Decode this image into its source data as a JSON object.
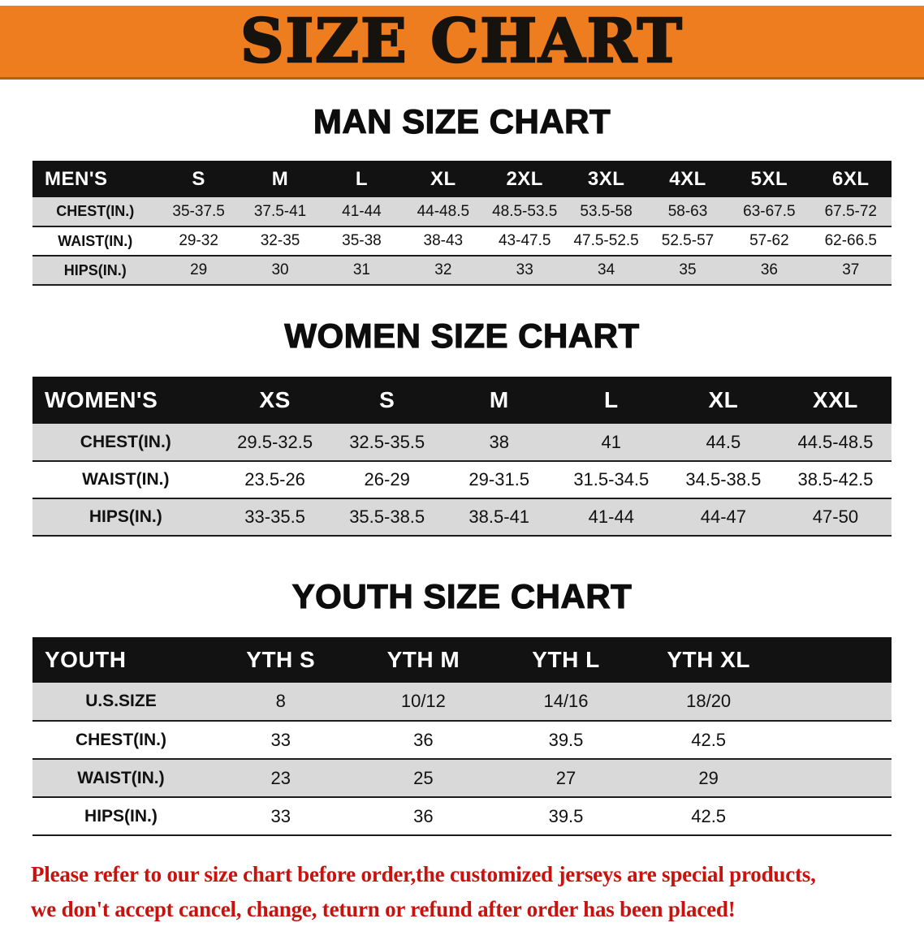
{
  "colors": {
    "banner_bg": "#EE7D1F",
    "table_header_bg": "#121212",
    "row_stripe": "#D9D9D9",
    "disclaimer_text": "#C9120E"
  },
  "banner": {
    "title": "SIZE CHART"
  },
  "sections": [
    {
      "id": "men",
      "heading": "MAN SIZE CHART",
      "table": {
        "header": [
          "MEN'S",
          "S",
          "M",
          "L",
          "XL",
          "2XL",
          "3XL",
          "4XL",
          "5XL",
          "6XL"
        ],
        "rows": [
          [
            "CHEST(IN.)",
            "35-37.5",
            "37.5-41",
            "41-44",
            "44-48.5",
            "48.5-53.5",
            "53.5-58",
            "58-63",
            "63-67.5",
            "67.5-72"
          ],
          [
            "WAIST(IN.)",
            "29-32",
            "32-35",
            "35-38",
            "38-43",
            "43-47.5",
            "47.5-52.5",
            "52.5-57",
            "57-62",
            "62-66.5"
          ],
          [
            "HIPS(IN.)",
            "29",
            "30",
            "31",
            "32",
            "33",
            "34",
            "35",
            "36",
            "37"
          ]
        ]
      }
    },
    {
      "id": "women",
      "heading": "WOMEN SIZE CHART",
      "table": {
        "header": [
          "WOMEN'S",
          "XS",
          "S",
          "M",
          "L",
          "XL",
          "XXL"
        ],
        "rows": [
          [
            "CHEST(IN.)",
            "29.5-32.5",
            "32.5-35.5",
            "38",
            "41",
            "44.5",
            "44.5-48.5"
          ],
          [
            "WAIST(IN.)",
            "23.5-26",
            "26-29",
            "29-31.5",
            "31.5-34.5",
            "34.5-38.5",
            "38.5-42.5"
          ],
          [
            "HIPS(IN.)",
            "33-35.5",
            "35.5-38.5",
            "38.5-41",
            "41-44",
            "44-47",
            "47-50"
          ]
        ]
      }
    },
    {
      "id": "youth",
      "heading": "YOUTH SIZE CHART",
      "table": {
        "header": [
          "YOUTH",
          "YTH S",
          "YTH M",
          "YTH L",
          "YTH XL"
        ],
        "rows": [
          [
            "U.S.SIZE",
            "8",
            "10/12",
            "14/16",
            "18/20"
          ],
          [
            "CHEST(IN.)",
            "33",
            "36",
            "39.5",
            "42.5"
          ],
          [
            "WAIST(IN.)",
            "23",
            "25",
            "27",
            "29"
          ],
          [
            "HIPS(IN.)",
            "33",
            "36",
            "39.5",
            "42.5"
          ]
        ]
      }
    }
  ],
  "disclaimer": {
    "line1": "Please refer to our size chart before order,the customized jerseys are special products,",
    "line2": "we don't accept cancel, change, teturn or refund after order has been placed!"
  }
}
